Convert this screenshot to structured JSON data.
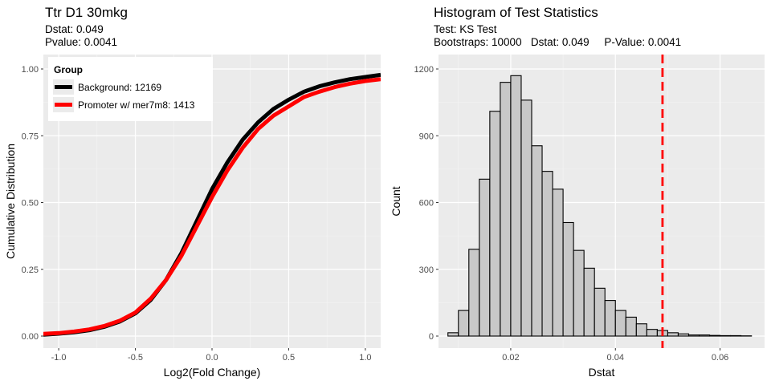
{
  "chart_data": [
    {
      "type": "line",
      "title": "Ttr D1 30mkg",
      "subtitle_lines": [
        "Dstat: 0.049",
        "Pvalue: 0.0041"
      ],
      "xlabel": "Log2(Fold Change)",
      "ylabel": "Cumulative Distribution",
      "xlim": [
        -1.1,
        1.1
      ],
      "ylim": [
        0,
        1
      ],
      "x_ticks": [
        -1.0,
        -0.5,
        0.0,
        0.5,
        1.0
      ],
      "x_tick_labels": [
        "-1.0",
        "-0.5",
        "0.0",
        "0.5",
        "1.0"
      ],
      "y_ticks": [
        0,
        0.25,
        0.5,
        0.75,
        1.0
      ],
      "y_tick_labels": [
        "0.00",
        "0.25",
        "0.50",
        "0.75",
        "1.00"
      ],
      "grid": true,
      "legend": {
        "title": "Group",
        "position": "top-left"
      },
      "series": [
        {
          "name": "Background: 12169",
          "color": "#000000",
          "points": [
            [
              -1.1,
              0.005
            ],
            [
              -1.0,
              0.009
            ],
            [
              -0.9,
              0.014
            ],
            [
              -0.8,
              0.022
            ],
            [
              -0.7,
              0.035
            ],
            [
              -0.6,
              0.055
            ],
            [
              -0.5,
              0.085
            ],
            [
              -0.4,
              0.135
            ],
            [
              -0.3,
              0.21
            ],
            [
              -0.2,
              0.31
            ],
            [
              -0.1,
              0.43
            ],
            [
              0.0,
              0.55
            ],
            [
              0.1,
              0.65
            ],
            [
              0.2,
              0.735
            ],
            [
              0.3,
              0.8
            ],
            [
              0.4,
              0.85
            ],
            [
              0.5,
              0.885
            ],
            [
              0.6,
              0.915
            ],
            [
              0.7,
              0.935
            ],
            [
              0.8,
              0.95
            ],
            [
              0.9,
              0.962
            ],
            [
              1.0,
              0.97
            ],
            [
              1.1,
              0.978
            ]
          ]
        },
        {
          "name": "Promoter w/ mer7m8: 1413",
          "color": "#ff0000",
          "points": [
            [
              -1.1,
              0.008
            ],
            [
              -1.0,
              0.011
            ],
            [
              -0.9,
              0.017
            ],
            [
              -0.8,
              0.025
            ],
            [
              -0.7,
              0.038
            ],
            [
              -0.6,
              0.058
            ],
            [
              -0.5,
              0.088
            ],
            [
              -0.4,
              0.14
            ],
            [
              -0.3,
              0.21
            ],
            [
              -0.2,
              0.3
            ],
            [
              -0.1,
              0.41
            ],
            [
              0.0,
              0.52
            ],
            [
              0.1,
              0.62
            ],
            [
              0.2,
              0.705
            ],
            [
              0.3,
              0.775
            ],
            [
              0.4,
              0.825
            ],
            [
              0.5,
              0.86
            ],
            [
              0.6,
              0.895
            ],
            [
              0.7,
              0.915
            ],
            [
              0.8,
              0.932
            ],
            [
              0.9,
              0.945
            ],
            [
              1.0,
              0.955
            ],
            [
              1.1,
              0.962
            ]
          ]
        }
      ]
    },
    {
      "type": "bar",
      "title": "Histogram of Test Statistics",
      "subtitle_lines": [
        "Test: KS Test",
        "Bootstraps: 10000   Dstat: 0.049     P-Value: 0.0041"
      ],
      "xlabel": "Dstat",
      "ylabel": "Count",
      "xlim": [
        0.0062,
        0.0685
      ],
      "ylim": [
        0,
        1200
      ],
      "x_ticks": [
        0.02,
        0.04,
        0.06
      ],
      "x_tick_labels": [
        "0.02",
        "0.04",
        "0.06"
      ],
      "y_ticks": [
        0,
        300,
        600,
        900,
        1200
      ],
      "y_tick_labels": [
        "0",
        "300",
        "600",
        "900",
        "1200"
      ],
      "grid": true,
      "bin_width": 0.002,
      "bin_starts": [
        0.008,
        0.01,
        0.012,
        0.014,
        0.016,
        0.018,
        0.02,
        0.022,
        0.024,
        0.026,
        0.028,
        0.03,
        0.032,
        0.034,
        0.036,
        0.038,
        0.04,
        0.042,
        0.044,
        0.046,
        0.048,
        0.05,
        0.052,
        0.054,
        0.056,
        0.058,
        0.06,
        0.062,
        0.064
      ],
      "values": [
        15,
        115,
        390,
        705,
        1010,
        1140,
        1170,
        1060,
        855,
        740,
        660,
        510,
        385,
        305,
        215,
        160,
        115,
        85,
        55,
        30,
        25,
        15,
        10,
        5,
        5,
        3,
        2,
        2,
        1
      ],
      "bar_fill": "#c8c8c8",
      "bar_stroke": "#000000",
      "reference_line": {
        "x": 0.049,
        "color": "#ff0000",
        "style": "dashed"
      }
    }
  ]
}
